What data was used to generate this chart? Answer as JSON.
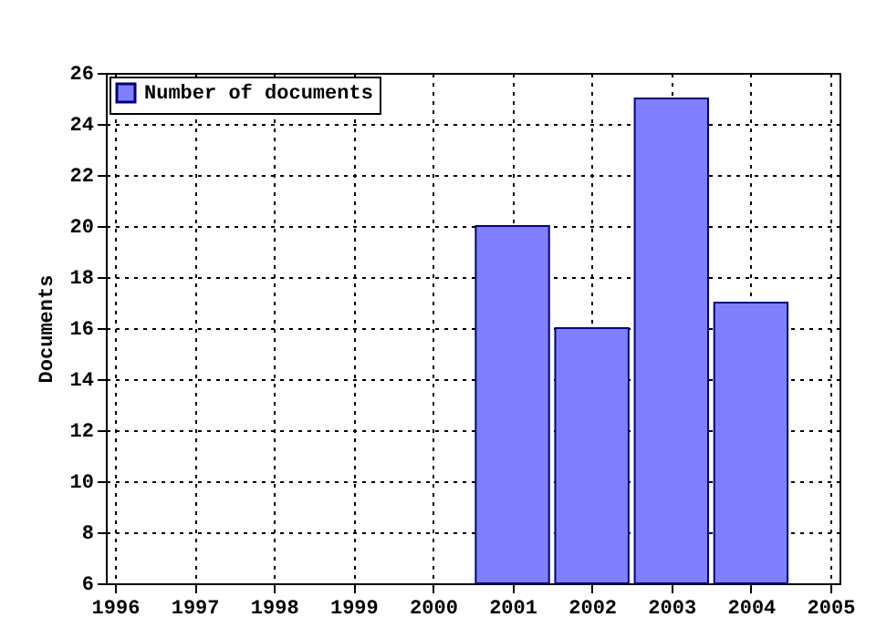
{
  "chart_data": {
    "type": "bar",
    "x": [
      2001,
      2002,
      2003,
      2004
    ],
    "series": [
      {
        "name": "Number of documents",
        "color": "#8080ff",
        "values": [
          20,
          16,
          25,
          17
        ]
      }
    ],
    "ylabel": "Documents",
    "xlim": [
      1996,
      2005
    ],
    "xticks": [
      1996,
      1997,
      1998,
      1999,
      2000,
      2001,
      2002,
      2003,
      2004,
      2005
    ],
    "ylim": [
      6,
      26
    ],
    "yticks": [
      6,
      8,
      10,
      12,
      14,
      16,
      18,
      20,
      22,
      24,
      26
    ],
    "grid": true,
    "legend": "top left"
  }
}
